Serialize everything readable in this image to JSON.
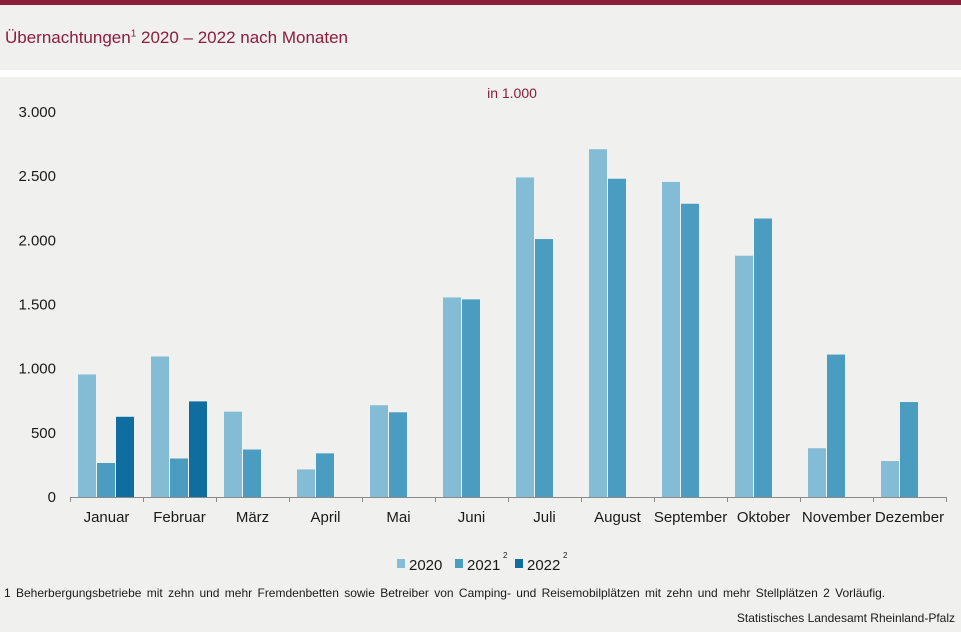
{
  "header": {
    "title_main": "Übernachtungen",
    "title_sup": "1",
    "title_rest": " 2020 – 2022 nach Monaten"
  },
  "chart_data": {
    "type": "bar",
    "unit_label": "in 1.000",
    "categories": [
      "Januar",
      "Februar",
      "März",
      "April",
      "Mai",
      "Juni",
      "Juli",
      "August",
      "September",
      "Oktober",
      "November",
      "Dezember"
    ],
    "series": [
      {
        "name": "2020",
        "sup": "",
        "color": "#84bcd5",
        "values": [
          955,
          1095,
          665,
          215,
          715,
          1555,
          2490,
          2710,
          2455,
          1880,
          380,
          280
        ]
      },
      {
        "name": "2021",
        "sup": "2",
        "color": "#4a9dc1",
        "values": [
          265,
          300,
          370,
          340,
          660,
          1540,
          2010,
          2480,
          2285,
          2170,
          1110,
          740
        ]
      },
      {
        "name": "2022",
        "sup": "2",
        "color": "#0f6e9f",
        "values": [
          625,
          745,
          null,
          null,
          null,
          null,
          null,
          null,
          null,
          null,
          null,
          null
        ]
      }
    ],
    "ylim": [
      0,
      3000
    ],
    "yticks": [
      {
        "value": 0,
        "label": "0"
      },
      {
        "value": 500,
        "label": "500"
      },
      {
        "value": 1000,
        "label": "1.000"
      },
      {
        "value": 1500,
        "label": "1.500"
      },
      {
        "value": 2000,
        "label": "2.000"
      },
      {
        "value": 2500,
        "label": "2.500"
      },
      {
        "value": 3000,
        "label": "3.000"
      }
    ],
    "grid": false,
    "legend_position": "bottom-center"
  },
  "footer": {
    "footnote": "1 Beherbergungsbetriebe mit zehn und mehr Fremdenbetten sowie Betreiber von Camping- und Reisemobilplätzen mit zehn und mehr Stellplätzen 2 Vorläufig.",
    "source": "Statistisches Landesamt Rheinland-Pfalz"
  }
}
